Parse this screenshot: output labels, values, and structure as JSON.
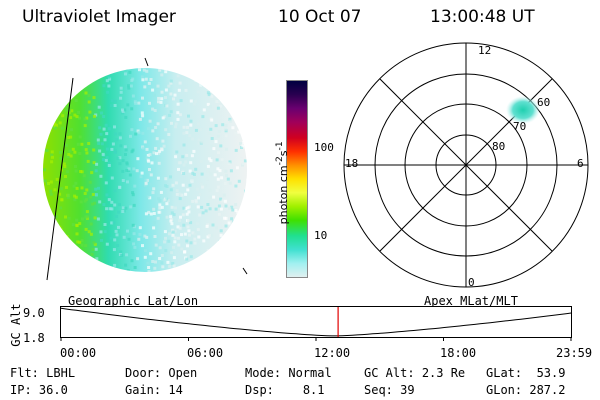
{
  "header": {
    "title": "Ultraviolet Imager",
    "date": "10 Oct 07",
    "time": "13:00:48 UT"
  },
  "colorbar": {
    "unit_label": "photon cm",
    "unit_exp1": "-2",
    "unit_mid": "s",
    "unit_exp2": "-1",
    "ticks": [
      "100",
      "10"
    ],
    "colors": [
      "#000040",
      "#2a0050",
      "#6a0070",
      "#a0005a",
      "#d00020",
      "#ff3000",
      "#ff9000",
      "#ffe000",
      "#f0ff40",
      "#a0f000",
      "#40e000",
      "#20e090",
      "#40e0d0",
      "#a0f0f0",
      "#e0f0f0"
    ]
  },
  "polar": {
    "mlt_labels": {
      "top": "12",
      "left": "18",
      "right": "6",
      "bottom": "0"
    },
    "lat_labels": [
      "60",
      "70",
      "80"
    ]
  },
  "timeline": {
    "left_label": "Geographic Lat/Lon",
    "right_label": "Apex MLat/MLT",
    "axis_title": "GC Alt",
    "y_ticks": [
      "9.0",
      "1.8"
    ],
    "x_ticks": [
      "00:00",
      "06:00",
      "12:00",
      "18:00",
      "23:59"
    ],
    "current_marker_color": "#e00000"
  },
  "footer": {
    "row1": [
      {
        "label": "Flt:",
        "value": "LBHL"
      },
      {
        "label": "Door:",
        "value": "Open"
      },
      {
        "label": "Mode:",
        "value": "Normal"
      },
      {
        "label": "GC Alt:",
        "value": "2.3 Re"
      },
      {
        "label": "GLat:",
        "value": "53.9"
      }
    ],
    "row2": [
      {
        "label": "IP:",
        "value": "36.0"
      },
      {
        "label": "Gain:",
        "value": "14"
      },
      {
        "label": "Dsp:",
        "value": "8.1"
      },
      {
        "label": "Seq:",
        "value": "39"
      },
      {
        "label": "GLon:",
        "value": "287.2"
      }
    ]
  }
}
